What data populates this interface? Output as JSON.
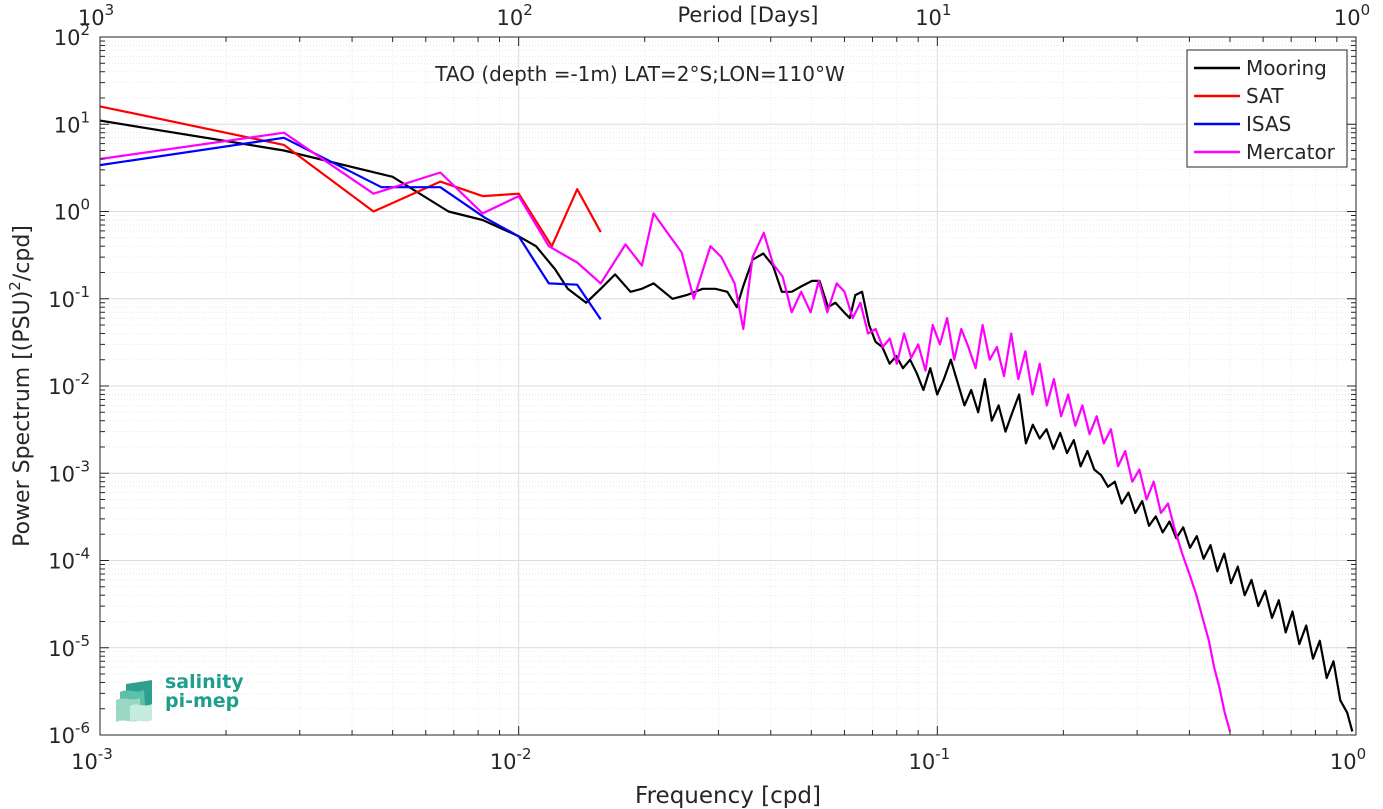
{
  "chart_data": {
    "type": "line",
    "title": "TAO (depth =-1m) LAT=2°S;LON=110°W",
    "xlabel": "Frequency [cpd]",
    "ylabel": "Power Spectrum [(PSU)",
    "ylabel_sup": "2",
    "ylabel_tail": "/cpd]",
    "top_xlabel": "Period [Days]",
    "xscale": "log",
    "yscale": "log",
    "xlim": [
      0.001,
      1
    ],
    "ylim": [
      1e-06,
      100
    ],
    "grid": true,
    "legend_position": "top-right",
    "x_tick_labels": [
      {
        "base": "10",
        "exp": "-3",
        "value": 0.001
      },
      {
        "base": "10",
        "exp": "-2",
        "value": 0.01
      },
      {
        "base": "10",
        "exp": "-1",
        "value": 0.1
      },
      {
        "base": "10",
        "exp": "0",
        "value": 1
      }
    ],
    "top_tick_labels": [
      {
        "base": "10",
        "exp": "3",
        "value": 0.001
      },
      {
        "base": "10",
        "exp": "2",
        "value": 0.01
      },
      {
        "base": "10",
        "exp": "1",
        "value": 0.1
      },
      {
        "base": "10",
        "exp": "0",
        "value": 1
      }
    ],
    "y_tick_labels": [
      {
        "base": "10",
        "exp": "2",
        "value": 100
      },
      {
        "base": "10",
        "exp": "1",
        "value": 10
      },
      {
        "base": "10",
        "exp": "0",
        "value": 1
      },
      {
        "base": "10",
        "exp": "-1",
        "value": 0.1
      },
      {
        "base": "10",
        "exp": "-2",
        "value": 0.01
      },
      {
        "base": "10",
        "exp": "-3",
        "value": 0.001
      },
      {
        "base": "10",
        "exp": "-4",
        "value": 0.0001
      },
      {
        "base": "10",
        "exp": "-5",
        "value": 1e-05
      },
      {
        "base": "10",
        "exp": "-6",
        "value": 1e-06
      }
    ],
    "series": [
      {
        "name": "Mooring",
        "color": "#000000",
        "x": [
          0.001,
          0.00275,
          0.005,
          0.0068,
          0.0082,
          0.01,
          0.011,
          0.0122,
          0.0131,
          0.0145,
          0.0157,
          0.017,
          0.0185,
          0.0197,
          0.021,
          0.0233,
          0.0252,
          0.0275,
          0.0295,
          0.0315,
          0.0332,
          0.0344,
          0.0362,
          0.0384,
          0.0405,
          0.0425,
          0.0449,
          0.0475,
          0.0502,
          0.0523,
          0.0548,
          0.0571,
          0.0599,
          0.0618,
          0.0637,
          0.0661,
          0.0687,
          0.0712,
          0.0739,
          0.0769,
          0.0798,
          0.0828,
          0.0861,
          0.0893,
          0.0926,
          0.0962,
          0.0999,
          0.1037,
          0.1077,
          0.1118,
          0.1161,
          0.1205,
          0.1252,
          0.1299,
          0.1349,
          0.1401,
          0.1455,
          0.1511,
          0.1568,
          0.1628,
          0.1691,
          0.1756,
          0.1823,
          0.1893,
          0.1965,
          0.204,
          0.2118,
          0.2199,
          0.2284,
          0.2371,
          0.2462,
          0.2556,
          0.2654,
          0.2756,
          0.2861,
          0.2971,
          0.3085,
          0.3203,
          0.3326,
          0.3453,
          0.3585,
          0.3722,
          0.3865,
          0.4013,
          0.4167,
          0.4326,
          0.4492,
          0.4664,
          0.4843,
          0.5028,
          0.5221,
          0.5421,
          0.5628,
          0.5844,
          0.6068,
          0.63,
          0.6542,
          0.6792,
          0.7052,
          0.7322,
          0.7603,
          0.7894,
          0.8196,
          0.851,
          0.8836,
          0.9174,
          0.9526,
          0.98
        ],
        "y": [
          11,
          5.0,
          2.5,
          1.0,
          0.8,
          0.52,
          0.4,
          0.22,
          0.13,
          0.09,
          0.13,
          0.19,
          0.12,
          0.13,
          0.15,
          0.1,
          0.11,
          0.13,
          0.13,
          0.12,
          0.08,
          0.14,
          0.28,
          0.33,
          0.24,
          0.12,
          0.12,
          0.14,
          0.16,
          0.16,
          0.08,
          0.09,
          0.07,
          0.06,
          0.11,
          0.12,
          0.05,
          0.032,
          0.028,
          0.018,
          0.022,
          0.016,
          0.02,
          0.014,
          0.009,
          0.016,
          0.008,
          0.012,
          0.02,
          0.011,
          0.006,
          0.009,
          0.005,
          0.012,
          0.004,
          0.006,
          0.003,
          0.005,
          0.008,
          0.0022,
          0.0036,
          0.0025,
          0.0032,
          0.0019,
          0.0029,
          0.0017,
          0.0024,
          0.0012,
          0.0018,
          0.0011,
          0.00095,
          0.0007,
          0.0008,
          0.00045,
          0.0006,
          0.00035,
          0.00048,
          0.00025,
          0.00032,
          0.00021,
          0.00028,
          0.00018,
          0.00024,
          0.00014,
          0.00019,
          0.000105,
          0.00015,
          7.5e-05,
          0.00012,
          5.5e-05,
          8.5e-05,
          4e-05,
          6e-05,
          3e-05,
          4.5e-05,
          2.2e-05,
          3.5e-05,
          1.5e-05,
          2.6e-05,
          1.1e-05,
          1.8e-05,
          7.5e-06,
          1.2e-05,
          4.5e-06,
          7e-06,
          2.5e-06,
          1.8e-06,
          1.1e-06
        ]
      },
      {
        "name": "SAT",
        "color": "#ff0000",
        "x": [
          0.001,
          0.00275,
          0.0045,
          0.0065,
          0.0082,
          0.01,
          0.012,
          0.0138,
          0.0157
        ],
        "y": [
          16,
          5.8,
          1.0,
          2.2,
          1.5,
          1.6,
          0.4,
          1.8,
          0.58
        ]
      },
      {
        "name": "ISAS",
        "color": "#0000ff",
        "x": [
          0.001,
          0.00275,
          0.0047,
          0.0065,
          0.0083,
          0.01,
          0.0118,
          0.0138,
          0.0157
        ],
        "y": [
          3.4,
          7.0,
          1.9,
          1.9,
          0.85,
          0.52,
          0.15,
          0.145,
          0.058
        ]
      },
      {
        "name": "Mercator",
        "color": "#ff00ff",
        "x": [
          0.001,
          0.00275,
          0.0045,
          0.0065,
          0.0082,
          0.01,
          0.0118,
          0.0138,
          0.0157,
          0.018,
          0.0197,
          0.021,
          0.0225,
          0.0245,
          0.0262,
          0.0287,
          0.0305,
          0.0328,
          0.0344,
          0.0362,
          0.0385,
          0.0405,
          0.0427,
          0.0449,
          0.0473,
          0.0498,
          0.0521,
          0.0546,
          0.0575,
          0.06,
          0.0628,
          0.0655,
          0.0683,
          0.0712,
          0.0741,
          0.077,
          0.08,
          0.0833,
          0.0866,
          0.09,
          0.0937,
          0.0975,
          0.1014,
          0.1055,
          0.1097,
          0.1141,
          0.1186,
          0.1234,
          0.1283,
          0.1334,
          0.1388,
          0.1443,
          0.1501,
          0.1561,
          0.1623,
          0.1688,
          0.1756,
          0.1826,
          0.1899,
          0.1975,
          0.2054,
          0.2136,
          0.2221,
          0.231,
          0.2402,
          0.2498,
          0.2598,
          0.2702,
          0.281,
          0.2922,
          0.3039,
          0.3161,
          0.3287,
          0.3419,
          0.3555,
          0.3697,
          0.3845,
          0.3999,
          0.4158,
          0.4325,
          0.4452,
          0.4583,
          0.4718,
          0.4858,
          0.5002
        ],
        "y": [
          4.0,
          8.0,
          1.6,
          2.8,
          0.95,
          1.5,
          0.4,
          0.26,
          0.15,
          0.42,
          0.24,
          0.95,
          0.6,
          0.34,
          0.1,
          0.4,
          0.3,
          0.15,
          0.045,
          0.3,
          0.57,
          0.25,
          0.18,
          0.07,
          0.12,
          0.07,
          0.16,
          0.07,
          0.15,
          0.12,
          0.06,
          0.09,
          0.04,
          0.045,
          0.028,
          0.035,
          0.018,
          0.04,
          0.021,
          0.03,
          0.015,
          0.05,
          0.03,
          0.06,
          0.02,
          0.045,
          0.028,
          0.016,
          0.05,
          0.02,
          0.028,
          0.013,
          0.04,
          0.012,
          0.025,
          0.008,
          0.018,
          0.006,
          0.012,
          0.0045,
          0.008,
          0.0035,
          0.006,
          0.0028,
          0.0045,
          0.0022,
          0.0032,
          0.0012,
          0.0018,
          0.0008,
          0.0011,
          0.0005,
          0.0008,
          0.00035,
          0.00045,
          0.00022,
          0.00012,
          7e-05,
          4e-05,
          2e-05,
          1.2e-05,
          6e-06,
          3.5e-06,
          1.8e-06,
          1.1e-06
        ]
      }
    ]
  },
  "logo": {
    "line1": "salinity",
    "line2": "pi-mep",
    "color": "#1f9e8e"
  }
}
